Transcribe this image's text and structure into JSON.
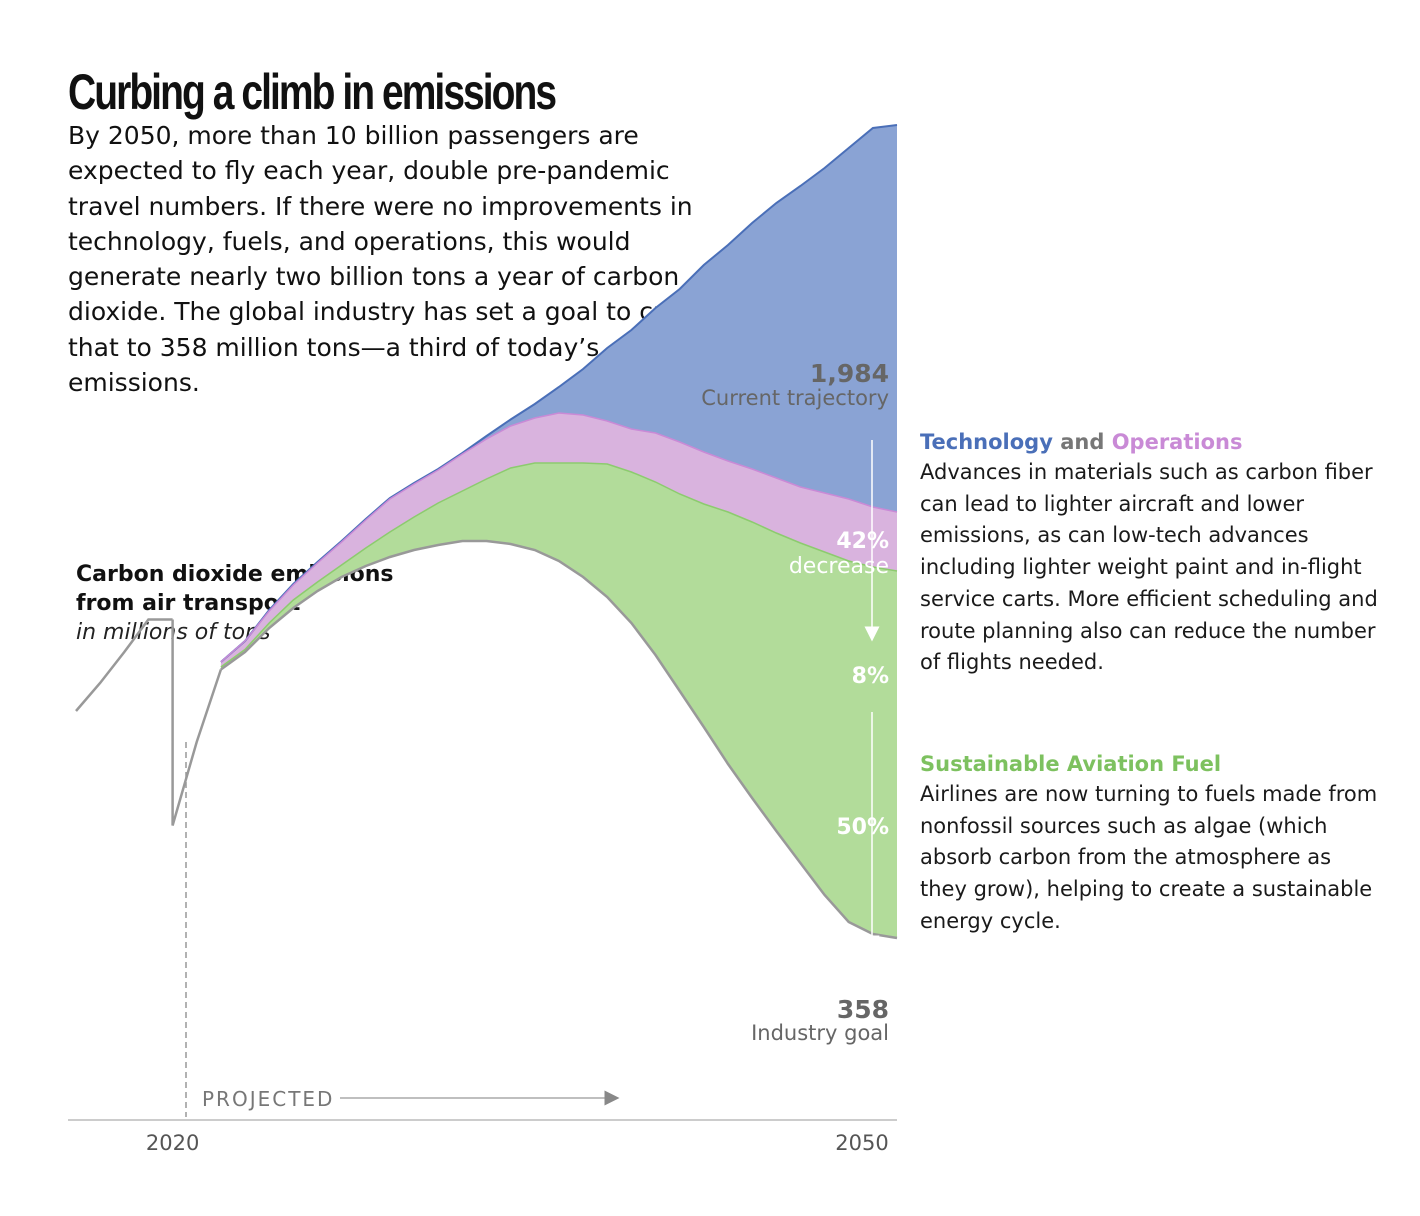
{
  "headline": "Curbing a climb in emissions",
  "deck": "By 2050, more than 10 billion passengers are expected to fly each year, double pre-pandemic travel numbers. If there were no improvements in technology, fuels, and operations, this would generate nearly two billion tons a year of carbon dioxide. The global industry has set a goal to cut that to 358 million tons—a third of today’s emissions.",
  "chart_label": {
    "title_line1": "Carbon dioxide emissions",
    "title_line2": "from air transport",
    "units": "in millions of tons"
  },
  "annotations": {
    "top_value": "1,984",
    "top_caption": "Current trajectory",
    "bottom_value": "358",
    "bottom_caption": "Industry goal",
    "pct_tech": "42%",
    "pct_tech_word": "decrease",
    "pct_ops": "8%",
    "pct_saf": "50%",
    "projected": "PROJECTED"
  },
  "sidebar": {
    "tech_heading_a": "Technology",
    "tech_heading_and": " and ",
    "tech_heading_b": "Operations",
    "tech_body": "Advances in materials such as carbon fiber can lead to lighter aircraft and lower emissions, as can low-tech advances including lighter weight paint and in-flight service carts. More efficient scheduling and route planning also can reduce the number of flights needed.",
    "saf_heading": "Sustainable Aviation Fuel",
    "saf_body": "Airlines are now turning to fuels made from nonfossil sources such as algae (which absorb carbon from the atmosphere as they grow), helping to create a sustainable energy cycle."
  },
  "colors": {
    "technology": "#8aa3d4",
    "technology_line": "#4a6fb8",
    "operations": "#d9b3de",
    "operations_line": "#c98ad6",
    "saf": "#b2dc9a",
    "saf_line": "#8ccb6e",
    "line_gray": "#999999",
    "axis": "#bbbbbb"
  },
  "chart_data": {
    "type": "area",
    "title": "Carbon dioxide emissions from air transport",
    "ylabel": "in millions of tons",
    "x_tick_labels": [
      "2020",
      "2050"
    ],
    "xlim": [
      2016,
      2050
    ],
    "ylim": [
      0,
      2000
    ],
    "historical": {
      "x": [
        2016,
        2017,
        2018,
        2019,
        2020
      ],
      "y": [
        812,
        868,
        930,
        995,
        995
      ]
    },
    "recovery": {
      "x": [
        2020,
        2021,
        2022
      ],
      "y": [
        583,
        750,
        895
      ]
    },
    "x": [
      2022,
      2023,
      2024,
      2025,
      2026,
      2027,
      2028,
      2029,
      2030,
      2031,
      2032,
      2033,
      2034,
      2035,
      2036,
      2037,
      2038,
      2039,
      2040,
      2041,
      2042,
      2043,
      2044,
      2045,
      2046,
      2047,
      2048,
      2049,
      2050
    ],
    "series": [
      {
        "name": "Current trajectory",
        "values": [
          910,
          952,
          1014,
          1066,
          1110,
          1152,
          1196,
          1238,
          1268,
          1296,
          1328,
          1362,
          1395,
          1426,
          1460,
          1496,
          1538,
          1574,
          1618,
          1656,
          1704,
          1744,
          1788,
          1828,
          1862,
          1898,
          1938,
          1978,
          1984
        ]
      },
      {
        "name": "After Technology",
        "values": [
          910,
          952,
          1012,
          1064,
          1108,
          1150,
          1194,
          1236,
          1266,
          1294,
          1326,
          1356,
          1382,
          1398,
          1408,
          1404,
          1392,
          1376,
          1368,
          1350,
          1330,
          1312,
          1296,
          1278,
          1260,
          1248,
          1236,
          1220,
          1210
        ]
      },
      {
        "name": "After Operations",
        "values": [
          900,
          935,
          988,
          1034,
          1070,
          1104,
          1138,
          1170,
          1200,
          1228,
          1252,
          1276,
          1298,
          1308,
          1308,
          1308,
          1306,
          1290,
          1270,
          1246,
          1226,
          1210,
          1190,
          1168,
          1148,
          1130,
          1112,
          1100,
          1092
        ]
      },
      {
        "name": "Industry goal",
        "values": [
          895,
          930,
          978,
          1018,
          1052,
          1080,
          1102,
          1120,
          1134,
          1144,
          1152,
          1152,
          1146,
          1134,
          1112,
          1080,
          1040,
          988,
          924,
          852,
          780,
          706,
          638,
          572,
          508,
          444,
          390,
          366,
          358
        ]
      }
    ],
    "reductions": {
      "technology": "42%",
      "operations": "8%",
      "saf": "50%"
    },
    "labeled_values": {
      "2050_current_trajectory": 1984,
      "2050_industry_goal": 358
    },
    "projected_from": 2020,
    "grid": false,
    "legend": "none"
  }
}
